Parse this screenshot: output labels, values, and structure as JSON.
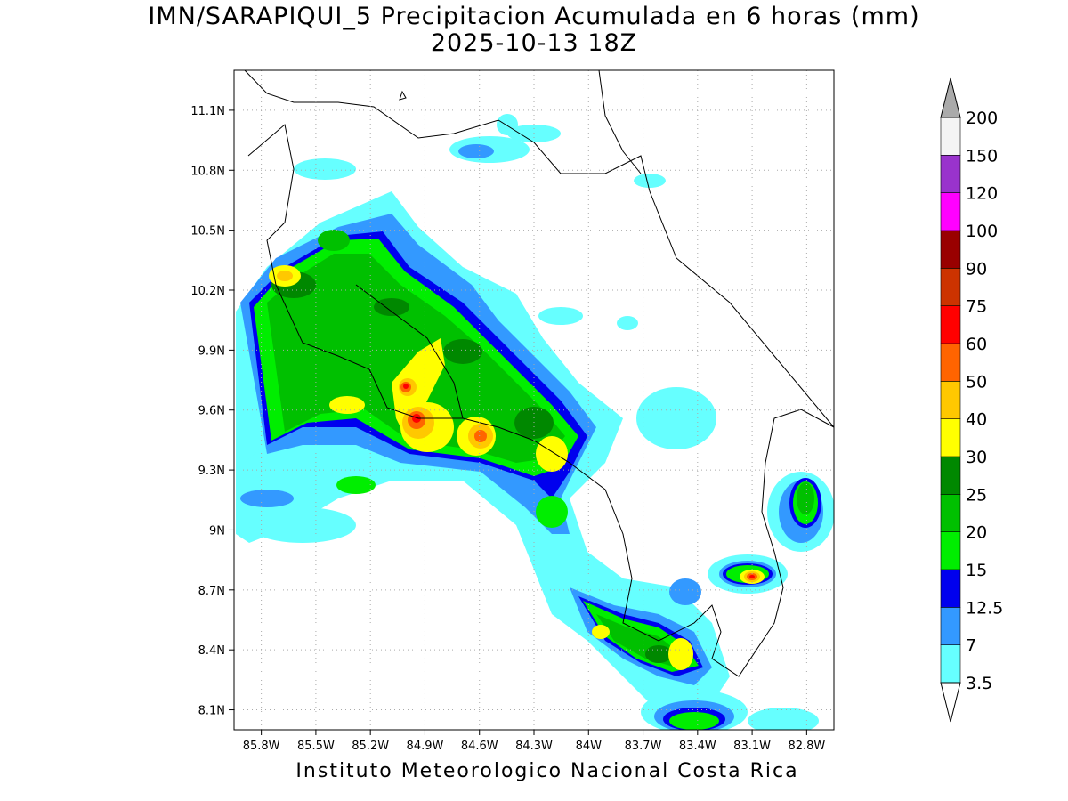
{
  "title": {
    "line1": "IMN/SARAPIQUI_5 Precipitacion Acumulada en 6 horas (mm)",
    "line2": "2025-10-13 18Z"
  },
  "credit": "Instituto Meteorologico Nacional Costa Rica",
  "map": {
    "region": "Costa Rica",
    "variable": "Precipitacion Acumulada en 6 horas",
    "units": "mm",
    "lon_range": [
      -85.95,
      -82.65
    ],
    "lat_range": [
      8.0,
      11.3
    ],
    "grid": true,
    "lon_ticks": [
      "85.8W",
      "85.5W",
      "85.2W",
      "84.9W",
      "84.6W",
      "84.3W",
      "84W",
      "83.7W",
      "83.4W",
      "83.1W",
      "82.8W"
    ],
    "lat_ticks": [
      "11.1N",
      "10.8N",
      "10.5N",
      "10.2N",
      "9.9N",
      "9.6N",
      "9.3N",
      "9N",
      "8.7N",
      "8.4N",
      "8.1N"
    ]
  },
  "colorbar": {
    "labels": [
      "3.5",
      "7",
      "12.5",
      "15",
      "20",
      "25",
      "30",
      "40",
      "50",
      "60",
      "75",
      "90",
      "100",
      "120",
      "150",
      "200"
    ],
    "colors": [
      "#66ffff",
      "#3399ff",
      "#0000ee",
      "#00ee00",
      "#00c000",
      "#008800",
      "#ffff00",
      "#ffc800",
      "#ff6400",
      "#ff0000",
      "#cc3300",
      "#990000",
      "#ff00ff",
      "#9933cc",
      "#f4f4f4",
      "#aaaaaa"
    ]
  }
}
